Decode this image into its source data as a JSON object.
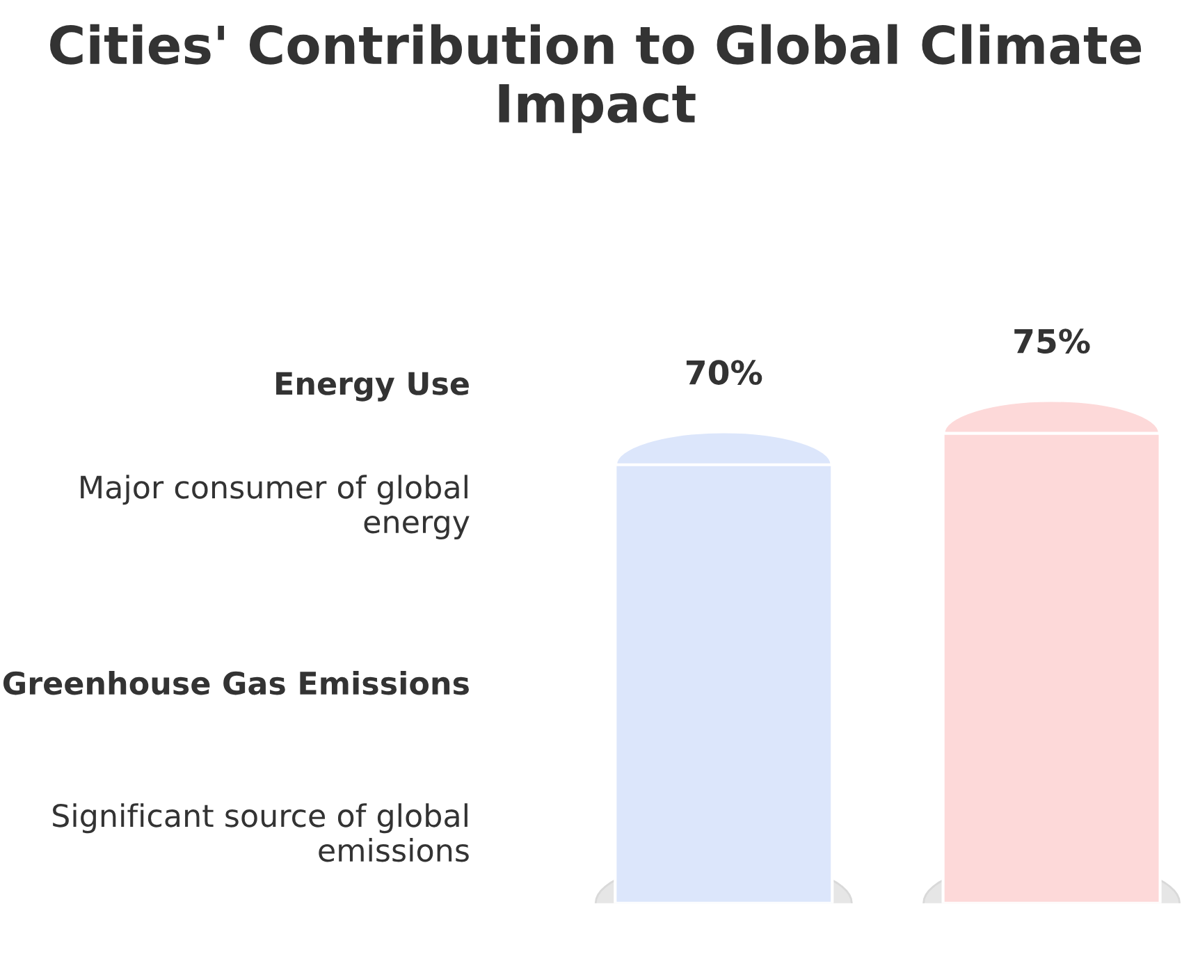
{
  "chart_data": {
    "type": "bar",
    "title": "Cities' Contribution to Global Climate Impact",
    "categories": [
      null,
      null
    ],
    "values": [
      70,
      75
    ],
    "value_labels": [
      "70%",
      "75%"
    ],
    "colors": [
      "#dce6fb",
      "#fdd9d9"
    ],
    "annotations": [
      "Energy Use",
      "Major consumer of global energy",
      "Greenhouse Gas Emissions",
      "Significant source of global emissions"
    ]
  }
}
